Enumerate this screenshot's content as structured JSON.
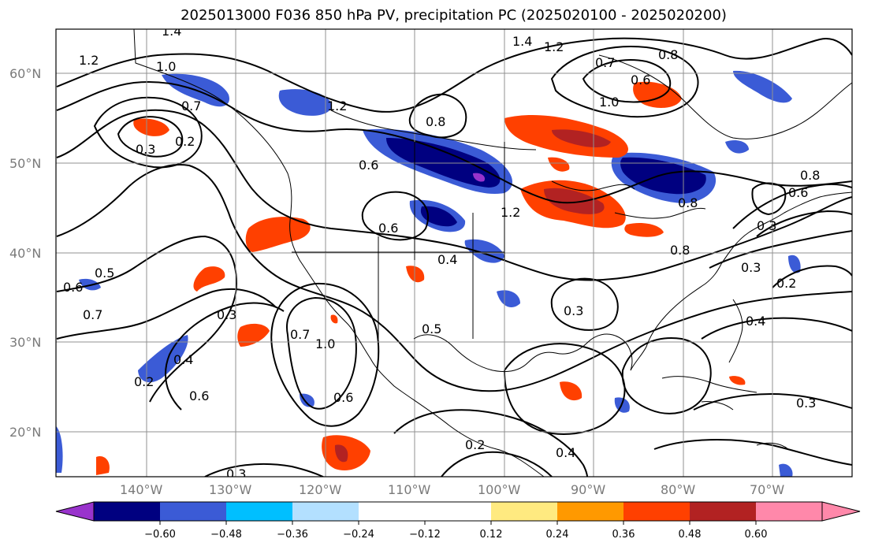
{
  "title": "2025013000 F036 850 hPa PV, precipitation PC (2025020100 - 2025020200)",
  "map": {
    "lat_labels": [
      "60°N",
      "50°N",
      "40°N",
      "30°N",
      "20°N"
    ],
    "lon_labels": [
      "140°W",
      "130°W",
      "120°W",
      "110°W",
      "100°W",
      "90°W",
      "80°W",
      "70°W"
    ],
    "contour_labels": [
      "1.4",
      "1.2",
      "1.0",
      "0.7",
      "0.2",
      "0.3",
      "0.8",
      "0.6",
      "1.2",
      "0.7",
      "0.6",
      "1.0",
      "1.2",
      "1.4",
      "0.8",
      "0.6",
      "1.2",
      "0.8",
      "0.6",
      "0.4",
      "0.3",
      "0.8",
      "0.3",
      "0.2",
      "0.6",
      "0.5",
      "0.7",
      "0.3",
      "0.7",
      "1.0",
      "0.4",
      "0.2",
      "0.6",
      "0.6",
      "0.4",
      "0.3",
      "0.4",
      "0.3",
      "0.2",
      "0.8",
      "0.3",
      "0.5"
    ]
  },
  "colorbar": {
    "ticks": [
      "−0.60",
      "−0.48",
      "−0.36",
      "−0.24",
      "−0.12",
      "0.12",
      "0.24",
      "0.36",
      "0.48",
      "0.60"
    ],
    "colors": [
      "#9933cc",
      "#000080",
      "#3b5bd6",
      "#00bfff",
      "#b3e0ff",
      "#ffffff",
      "#ffea80",
      "#ff9900",
      "#ff4000",
      "#b22222",
      "#ff88aa"
    ]
  },
  "colors": {
    "grid": "#909090",
    "contour": "#000000",
    "coast": "#000000"
  }
}
